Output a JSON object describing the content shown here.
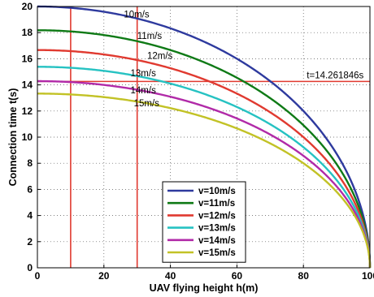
{
  "chart_data": {
    "type": "line",
    "xlabel": "UAV flying height h(m)",
    "ylabel": "Connection time t(s)",
    "xlim": [
      0,
      100
    ],
    "ylim": [
      0,
      20
    ],
    "x_ticks": [
      0,
      20,
      40,
      60,
      80,
      100
    ],
    "y_ticks": [
      0,
      2,
      4,
      6,
      8,
      10,
      12,
      14,
      16,
      18,
      20
    ],
    "grid": true,
    "legend_position": "bottom-center",
    "model": "t = (2/v) * sqrt(100^2 - h^2)",
    "series": [
      {
        "name": "v=10m/s",
        "label": "10m/s",
        "v": 10,
        "color": "#2e3a9e",
        "t_at_0": 20
      },
      {
        "name": "v=11m/s",
        "label": "11m/s",
        "v": 11,
        "color": "#0f7a16",
        "t_at_0": 18.18
      },
      {
        "name": "v=12m/s",
        "label": "12m/s",
        "v": 12,
        "color": "#e03a30",
        "t_at_0": 16.67
      },
      {
        "name": "v=13m/s",
        "label": "13m/s",
        "v": 13,
        "color": "#26c2c2",
        "t_at_0": 15.38
      },
      {
        "name": "v=14m/s",
        "label": "14m/s",
        "v": 14,
        "color": "#b12aa8",
        "t_at_0": 14.29
      },
      {
        "name": "v=15m/s",
        "label": "15m/s",
        "v": 15,
        "color": "#c2c226",
        "t_at_0": 13.33
      }
    ],
    "reference_lines": {
      "vertical_x": [
        10,
        30
      ],
      "horizontal_y": 14.261846,
      "horizontal_label": "t=14.261846s",
      "color": "#e03a30"
    }
  }
}
